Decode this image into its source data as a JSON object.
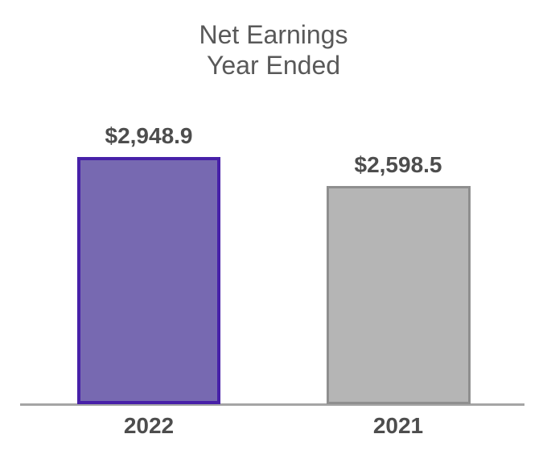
{
  "title": {
    "line1": "Net Earnings",
    "line2": "Year Ended"
  },
  "chart_data": {
    "type": "bar",
    "title": "Net Earnings Year Ended",
    "categories": [
      "2022",
      "2021"
    ],
    "values": [
      2948.9,
      2598.5
    ],
    "value_labels": [
      "$2,948.9",
      "$2,598.5"
    ],
    "xlabel": "",
    "ylabel": "",
    "ylim": [
      0,
      2948.9
    ],
    "grid": false,
    "legend": false,
    "units": "millions USD",
    "bar_styles": [
      {
        "fill": "#7769b1",
        "border": "#4720a8"
      },
      {
        "fill": "#b5b5b5",
        "border": "#8f8f8f"
      }
    ]
  },
  "colors": {
    "background": "#ffffff",
    "title_text": "#595959",
    "label_text": "#4d4d4d",
    "axis_line": "#a5a5a5"
  }
}
